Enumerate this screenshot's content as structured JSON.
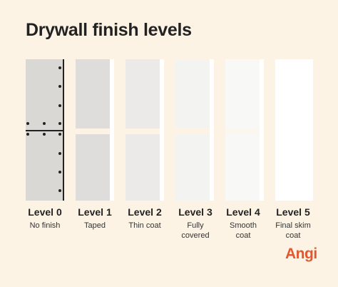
{
  "title": "Drywall finish levels",
  "levels": [
    {
      "label": "Level 0",
      "desc": "No finish",
      "color": "#d9d8d5"
    },
    {
      "label": "Level 1",
      "desc": "Taped",
      "color": "#dedddb"
    },
    {
      "label": "Level 2",
      "desc": "Thin coat",
      "color": "#ebeae8"
    },
    {
      "label": "Level 3",
      "desc": "Fully covered",
      "color": "#f3f3f2"
    },
    {
      "label": "Level 4",
      "desc": "Smooth coat",
      "color": "#f8f8f7"
    },
    {
      "label": "Level 5",
      "desc": "Final skim coat",
      "color": "#ffffff"
    }
  ],
  "logo": "Angi",
  "colors": {
    "background": "#fdf3e4",
    "logo": "#e4572e",
    "ink": "#222222"
  }
}
